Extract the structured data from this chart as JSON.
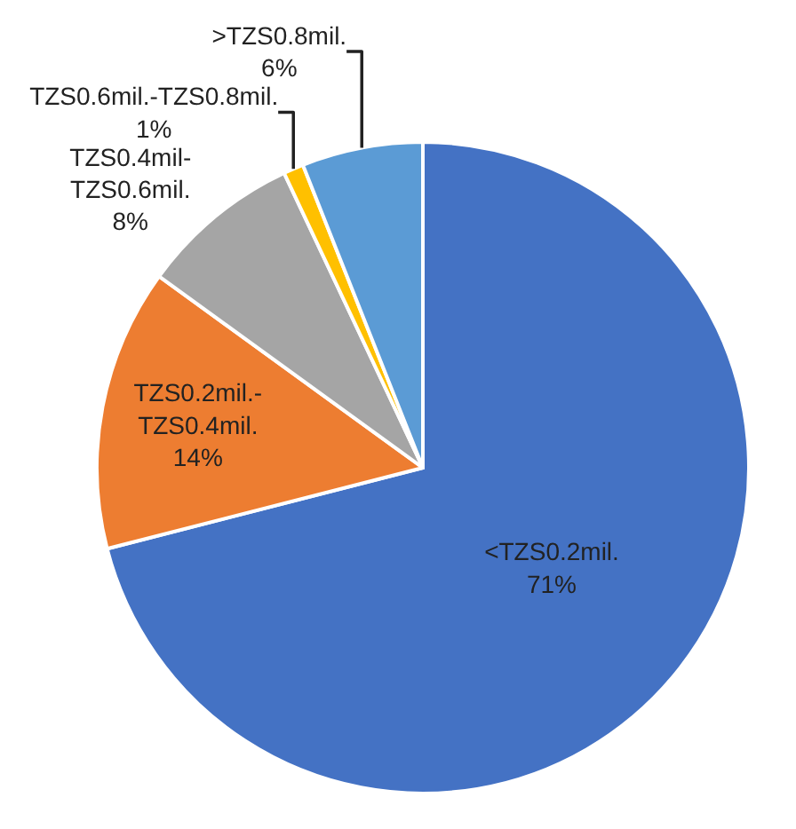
{
  "chart_data": {
    "type": "pie",
    "categories": [
      "<TZS0.2mil.",
      "TZS0.2mil.-TZS0.4mil.",
      "TZS0.4mil-TZS0.6mil.",
      "TZS0.6mil.-TZS0.8mil.",
      ">TZS0.8mil."
    ],
    "values": [
      71,
      14,
      8,
      1,
      6
    ],
    "value_labels": [
      "71%",
      "14%",
      "8%",
      "1%",
      "6%"
    ],
    "colors": [
      "#4472c4",
      "#ed7d31",
      "#a5a5a5",
      "#ffc000",
      "#5b9bd5"
    ],
    "legend": false
  }
}
